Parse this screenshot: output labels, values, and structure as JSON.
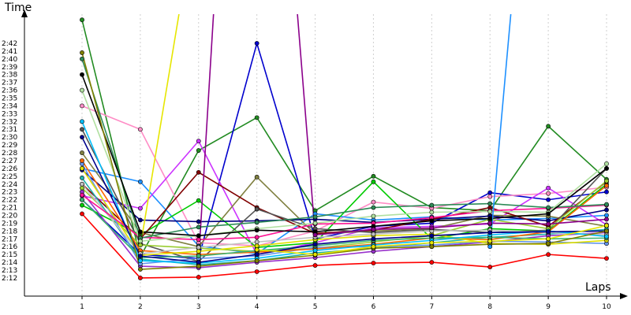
{
  "chart_data": {
    "type": "line",
    "title": "",
    "xlabel": "Laps",
    "ylabel": "Time",
    "x": [
      1,
      2,
      3,
      4,
      5,
      6,
      7,
      8,
      9,
      10
    ],
    "yticks": [
      "2:13",
      "2:14",
      "2:15",
      "2:16",
      "2:17",
      "2:18",
      "2:19",
      "2:20",
      "2:21",
      "2:22",
      "2:23",
      "2:24",
      "2:25",
      "2:26",
      "2:27",
      "2:28",
      "2:29",
      "2:30",
      "2:31",
      "2:32",
      "2:33",
      "2:34",
      "2:35",
      "2:36",
      "2:37",
      "2:38",
      "2:39",
      "2:40",
      "2:41",
      "2:42"
    ],
    "ytick_extra": [
      "2:12"
    ],
    "ylim_seconds": [
      130,
      164
    ],
    "grid": true,
    "series": [
      {
        "color": "#ff0000",
        "values": [
          140.2,
          132.0,
          132.1,
          132.8,
          133.6,
          133.9,
          134.0,
          133.4,
          135.0,
          134.5
        ]
      },
      {
        "color": "#228b22",
        "values": [
          165.0,
          134.7,
          148.3,
          152.5,
          140.6,
          145.0,
          141.0,
          140.6,
          151.4,
          144.6
        ]
      },
      {
        "color": "#0000cd",
        "values": [
          142.0,
          135.0,
          134.5,
          162.0,
          137.0,
          138.6,
          139.0,
          142.9,
          142.0,
          143.0
        ]
      },
      {
        "color": "#ff8dc6",
        "values": [
          154.0,
          151.0,
          136.5,
          136.1,
          138.0,
          141.7,
          140.9,
          142.4,
          142.8,
          143.6
        ]
      },
      {
        "color": "#1e90ff",
        "values": [
          146.0,
          144.3,
          136.1,
          135.1,
          140.2,
          139.4,
          139.8,
          139.4,
          139.6,
          140.0
        ]
      },
      {
        "color": "#cc33ff",
        "values": [
          142.5,
          140.9,
          149.5,
          135.0,
          136.5,
          138.4,
          138.6,
          138.9,
          143.5,
          138.8
        ]
      },
      {
        "color": "#00cc00",
        "values": [
          141.3,
          137.5,
          141.9,
          135.9,
          136.5,
          144.3,
          137.0,
          138.3,
          138.0,
          144.0
        ]
      },
      {
        "color": "#808040",
        "values": [
          148.0,
          137.8,
          136.0,
          144.9,
          137.6,
          138.0,
          138.3,
          140.0,
          139.9,
          138.6
        ]
      },
      {
        "color": "#000080",
        "values": [
          145.8,
          139.4,
          139.2,
          139.3,
          139.5,
          139.1,
          139.5,
          139.9,
          139.3,
          140.7
        ]
      },
      {
        "color": "#800000",
        "values": [
          144.0,
          137.0,
          145.5,
          141.0,
          137.7,
          138.1,
          139.5,
          141.0,
          138.6,
          144.3
        ]
      },
      {
        "color": "#555555",
        "values": [
          151.0,
          136.4,
          134.1,
          140.8,
          138.3,
          137.8,
          138.2,
          137.8,
          138.1,
          146.0
        ]
      },
      {
        "color": "#9acd32",
        "values": [
          143.5,
          136.2,
          135.8,
          135.4,
          135.8,
          136.6,
          137.4,
          139.5,
          138.3,
          144.4
        ]
      },
      {
        "color": "#20b2aa",
        "values": [
          144.8,
          134.4,
          133.7,
          134.2,
          135.2,
          135.8,
          136.5,
          137.2,
          137.6,
          138.2
        ]
      },
      {
        "color": "#9932cc",
        "values": [
          143.0,
          133.5,
          133.3,
          134.0,
          134.6,
          135.4,
          136.0,
          136.6,
          137.4,
          137.8
        ]
      },
      {
        "color": "#6495ed",
        "values": [
          146.6,
          133.8,
          134.5,
          134.8,
          135.9,
          136.0,
          136.2,
          136.7,
          136.6,
          136.4
        ]
      },
      {
        "color": "#ff6600",
        "values": [
          147.0,
          135.5,
          135.0,
          135.3,
          135.7,
          136.3,
          137.1,
          136.9,
          137.9,
          143.8
        ]
      },
      {
        "color": "#e0e000",
        "values": [
          146.0,
          134.9,
          135.4,
          136.1,
          136.9,
          137.4,
          137.6,
          136.4,
          136.3,
          136.8
        ]
      },
      {
        "color": "#3cb371",
        "values": [
          142.0,
          134.6,
          134.8,
          135.5,
          136.1,
          136.8,
          137.1,
          137.2,
          137.0,
          137.1
        ]
      },
      {
        "color": "#c0c0c0",
        "values": [
          144.0,
          135.1,
          135.9,
          136.6,
          137.2,
          137.6,
          138.0,
          138.1,
          137.8,
          137.5
        ]
      },
      {
        "color": "#00bfff",
        "values": [
          152.0,
          134.2,
          133.9,
          134.5,
          135.5,
          136.2,
          136.8,
          137.5,
          138.0,
          137.3
        ]
      },
      {
        "color": "#ff1493",
        "values": [
          142.6,
          137.2,
          136.9,
          137.2,
          138.9,
          139.0,
          139.7,
          140.6,
          140.9,
          141.3
        ]
      },
      {
        "color": "#2e8b57",
        "values": [
          160.0,
          137.1,
          138.5,
          139.1,
          139.8,
          141.0,
          141.3,
          141.5,
          141.0,
          141.4
        ]
      },
      {
        "color": "#00008b",
        "values": [
          150.0,
          134.8,
          134.0,
          135.0,
          136.3,
          137.0,
          137.4,
          137.8,
          137.9,
          138.0
        ]
      },
      {
        "color": "#b0e0a0",
        "values": [
          156.0,
          136.7,
          137.4,
          138.3,
          139.0,
          139.9,
          140.4,
          140.5,
          140.4,
          146.6
        ]
      },
      {
        "color": "#000000",
        "values": [
          158.0,
          137.9,
          137.4,
          138.1,
          137.9,
          138.6,
          139.3,
          139.6,
          140.2,
          146.0
        ]
      },
      {
        "color": "#808000",
        "values": [
          160.8,
          133.1,
          133.5,
          134.2,
          134.9,
          135.8,
          136.0,
          136.3,
          136.4,
          138.0
        ]
      },
      {
        "color": "#e6e600",
        "values": [
          null,
          null,
          null,
          135.6,
          135.0,
          136.0,
          136.5,
          136.7,
          137.0,
          138.7
        ]
      },
      {
        "color": "#8b008b",
        "values": [
          null,
          null,
          null,
          null,
          137.5,
          138.2,
          138.4,
          139.0,
          138.9,
          139.5
        ]
      },
      {
        "color": "#1e90ff",
        "values": [
          null,
          null,
          null,
          null,
          null,
          null,
          null,
          136.0,
          null,
          null
        ]
      }
    ]
  }
}
